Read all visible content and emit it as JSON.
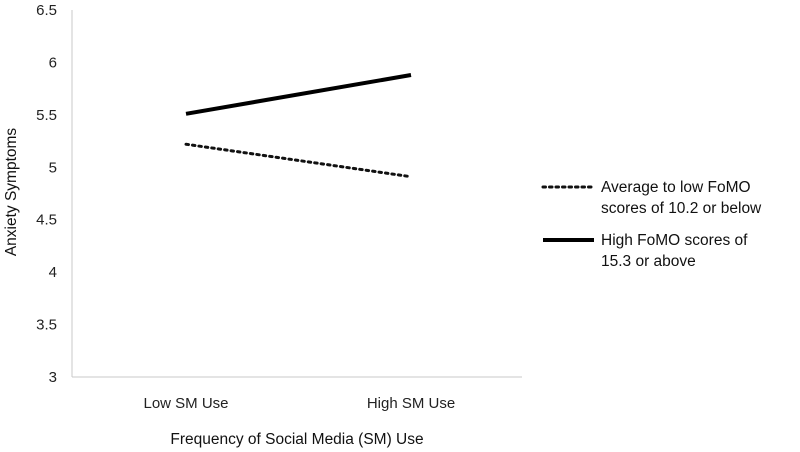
{
  "chart_data": {
    "type": "line",
    "categories": [
      "Low SM Use",
      "High SM Use"
    ],
    "series": [
      {
        "name_lines": [
          "Average to low FoMO",
          "scores of 10.2 or below"
        ],
        "values": [
          5.22,
          4.91
        ],
        "style": "dotted",
        "color": "#111111"
      },
      {
        "name_lines": [
          "High FoMO scores of",
          "15.3 or above"
        ],
        "values": [
          5.51,
          5.88
        ],
        "style": "solid",
        "color": "#000000"
      }
    ],
    "xlabel": "Frequency of Social Media (SM) Use",
    "ylabel": "Anxiety Symptoms",
    "ylim": [
      3,
      6.5
    ],
    "yticks": [
      "3",
      "3.5",
      "4",
      "4.5",
      "5",
      "5.5",
      "6",
      "6.5"
    ],
    "grid": false,
    "legend_position": "right"
  }
}
